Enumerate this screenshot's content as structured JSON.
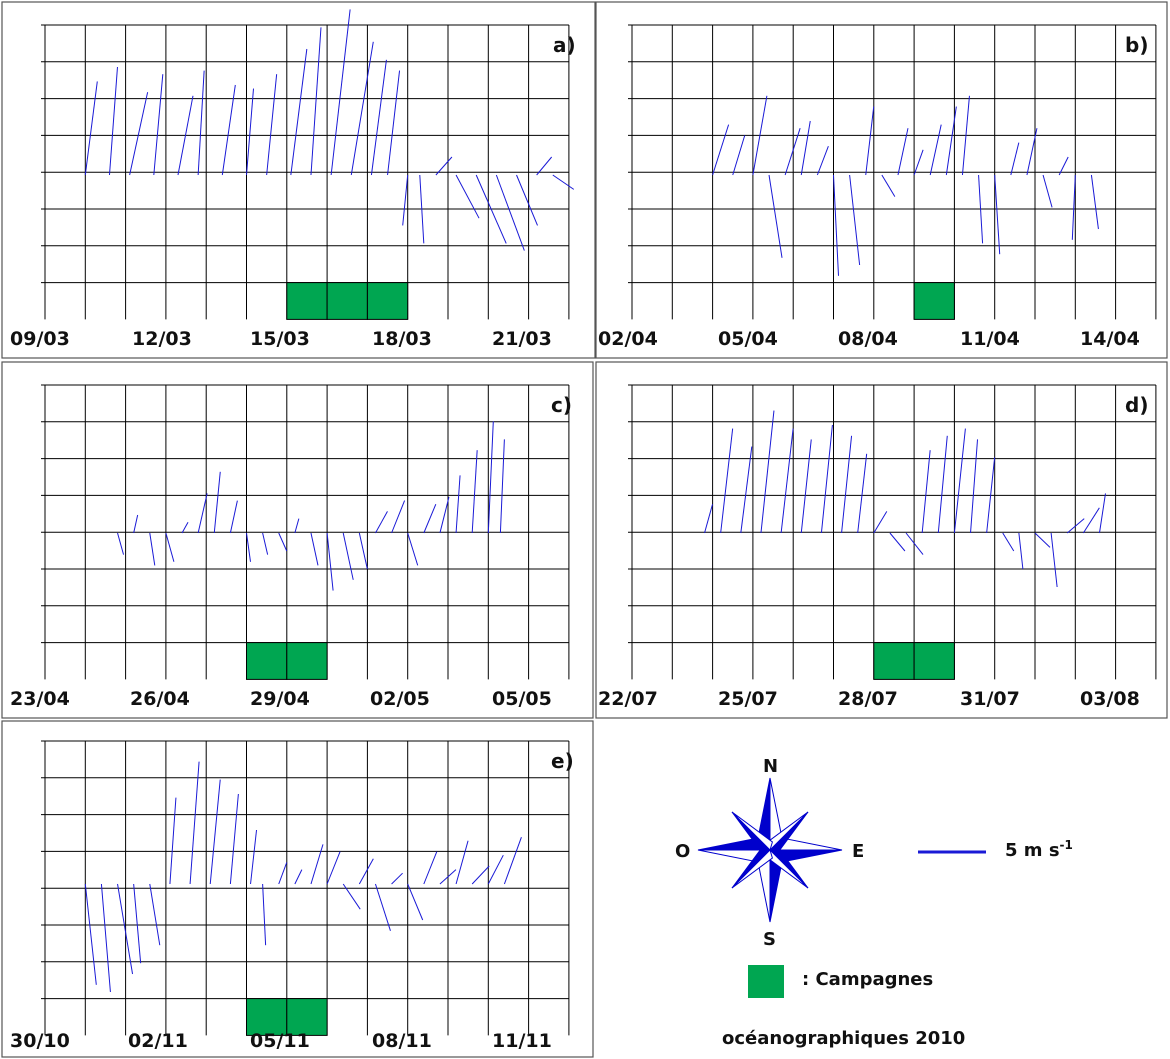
{
  "colors": {
    "wind": "#1a1ad6",
    "campaign": "#00a651",
    "grid": "#000000"
  },
  "chart_data": [
    {
      "type": "wind-stick-plot",
      "panel_label": "a)",
      "x_tick_labels": [
        "09/03",
        "12/03",
        "15/03",
        "18/03",
        "21/03"
      ],
      "campaign_days": [
        "15/03",
        "16/03",
        "17/03"
      ],
      "wind_sticks": [
        {
          "day": 0.0,
          "u": 1.2,
          "v": 2.6
        },
        {
          "day": 0.6,
          "u": 0.8,
          "v": 3.0
        },
        {
          "day": 1.1,
          "u": 1.8,
          "v": 2.3
        },
        {
          "day": 1.7,
          "u": 0.9,
          "v": 2.8
        },
        {
          "day": 2.3,
          "u": 1.5,
          "v": 2.2
        },
        {
          "day": 2.8,
          "u": 0.6,
          "v": 2.9
        },
        {
          "day": 3.4,
          "u": 1.3,
          "v": 2.5
        },
        {
          "day": 4.0,
          "u": 0.7,
          "v": 2.4
        },
        {
          "day": 4.5,
          "u": 1.0,
          "v": 2.8
        },
        {
          "day": 5.1,
          "u": 1.6,
          "v": 3.5
        },
        {
          "day": 5.6,
          "u": 1.0,
          "v": 4.1
        },
        {
          "day": 6.1,
          "u": 1.9,
          "v": 4.6
        },
        {
          "day": 6.6,
          "u": 2.2,
          "v": 3.7
        },
        {
          "day": 7.1,
          "u": 1.5,
          "v": 3.2
        },
        {
          "day": 7.5,
          "u": 1.2,
          "v": 2.9
        },
        {
          "day": 8.0,
          "u": -0.5,
          "v": -1.4
        },
        {
          "day": 8.3,
          "u": 0.4,
          "v": -1.9
        },
        {
          "day": 8.7,
          "u": 1.6,
          "v": 0.5
        },
        {
          "day": 9.2,
          "u": 2.3,
          "v": -1.2
        },
        {
          "day": 9.7,
          "u": 3.0,
          "v": -1.9
        },
        {
          "day": 10.2,
          "u": 2.8,
          "v": -2.1
        },
        {
          "day": 10.7,
          "u": 2.1,
          "v": -1.4
        },
        {
          "day": 11.2,
          "u": 1.5,
          "v": 0.5
        },
        {
          "day": 11.6,
          "u": 2.1,
          "v": -0.4
        }
      ]
    },
    {
      "type": "wind-stick-plot",
      "panel_label": "b)",
      "x_tick_labels": [
        "02/04",
        "05/04",
        "08/04",
        "11/04",
        "14/04"
      ],
      "campaign_days": [
        "09/04"
      ],
      "wind_sticks": [
        {
          "day": 1.0,
          "u": 1.6,
          "v": 1.4
        },
        {
          "day": 1.5,
          "u": 1.2,
          "v": 1.1
        },
        {
          "day": 2.0,
          "u": 1.4,
          "v": 2.2
        },
        {
          "day": 2.4,
          "u": 1.3,
          "v": -2.3
        },
        {
          "day": 2.8,
          "u": 1.5,
          "v": 1.3
        },
        {
          "day": 3.2,
          "u": 0.9,
          "v": 1.5
        },
        {
          "day": 3.6,
          "u": 1.1,
          "v": 0.8
        },
        {
          "day": 4.0,
          "u": 0.5,
          "v": -2.8
        },
        {
          "day": 4.4,
          "u": 1.0,
          "v": -2.5
        },
        {
          "day": 4.8,
          "u": 0.8,
          "v": 1.9
        },
        {
          "day": 5.2,
          "u": 1.3,
          "v": -0.6
        },
        {
          "day": 5.6,
          "u": 1.0,
          "v": 1.3
        },
        {
          "day": 6.0,
          "u": 0.9,
          "v": 0.7
        },
        {
          "day": 6.4,
          "u": 1.1,
          "v": 1.4
        },
        {
          "day": 6.8,
          "u": 1.0,
          "v": 1.9
        },
        {
          "day": 7.2,
          "u": 0.7,
          "v": 2.2
        },
        {
          "day": 7.6,
          "u": 0.4,
          "v": -1.9
        },
        {
          "day": 8.0,
          "u": 0.5,
          "v": -2.2
        },
        {
          "day": 8.4,
          "u": 0.8,
          "v": 0.9
        },
        {
          "day": 8.8,
          "u": 1.0,
          "v": 1.3
        },
        {
          "day": 9.2,
          "u": 0.9,
          "v": -0.9
        },
        {
          "day": 9.6,
          "u": 0.9,
          "v": 0.5
        },
        {
          "day": 10.0,
          "u": -0.3,
          "v": -1.8
        },
        {
          "day": 10.4,
          "u": 0.7,
          "v": -1.5
        }
      ]
    },
    {
      "type": "wind-stick-plot",
      "panel_label": "c)",
      "x_tick_labels": [
        "23/04",
        "26/04",
        "29/04",
        "02/05",
        "05/05"
      ],
      "campaign_days": [
        "28/04",
        "29/04"
      ],
      "wind_sticks": [
        {
          "day": 0.8,
          "u": 0.6,
          "v": -0.6
        },
        {
          "day": 1.2,
          "u": 0.4,
          "v": 0.5
        },
        {
          "day": 1.6,
          "u": 0.5,
          "v": -0.9
        },
        {
          "day": 2.0,
          "u": 0.8,
          "v": -0.8
        },
        {
          "day": 2.4,
          "u": 0.6,
          "v": 0.3
        },
        {
          "day": 2.8,
          "u": 0.9,
          "v": 1.1
        },
        {
          "day": 3.2,
          "u": 0.6,
          "v": 1.7
        },
        {
          "day": 3.6,
          "u": 0.7,
          "v": 0.9
        },
        {
          "day": 4.0,
          "u": 0.4,
          "v": -0.8
        },
        {
          "day": 4.4,
          "u": 0.5,
          "v": -0.6
        },
        {
          "day": 4.8,
          "u": 0.8,
          "v": -0.5
        },
        {
          "day": 5.2,
          "u": 0.4,
          "v": 0.4
        },
        {
          "day": 5.6,
          "u": 0.7,
          "v": -0.9
        },
        {
          "day": 6.0,
          "u": 0.6,
          "v": -1.6
        },
        {
          "day": 6.4,
          "u": 1.0,
          "v": -1.3
        },
        {
          "day": 6.8,
          "u": 0.8,
          "v": -1.0
        },
        {
          "day": 7.2,
          "u": 1.2,
          "v": 0.6
        },
        {
          "day": 7.6,
          "u": 1.3,
          "v": 0.9
        },
        {
          "day": 8.0,
          "u": 1.0,
          "v": -0.9
        },
        {
          "day": 8.4,
          "u": 1.2,
          "v": 0.8
        },
        {
          "day": 8.8,
          "u": 0.9,
          "v": 1.0
        },
        {
          "day": 9.2,
          "u": 0.4,
          "v": 1.6
        },
        {
          "day": 9.6,
          "u": 0.5,
          "v": 2.3
        },
        {
          "day": 10.0,
          "u": 0.5,
          "v": 3.1
        },
        {
          "day": 10.3,
          "u": 0.4,
          "v": 2.6
        }
      ]
    },
    {
      "type": "wind-stick-plot",
      "panel_label": "d)",
      "x_tick_labels": [
        "22/07",
        "25/07",
        "28/07",
        "31/07",
        "03/08"
      ],
      "campaign_days": [
        "28/07",
        "29/07"
      ],
      "wind_sticks": [
        {
          "day": 0.8,
          "u": 0.8,
          "v": 0.8
        },
        {
          "day": 1.2,
          "u": 1.2,
          "v": 2.9
        },
        {
          "day": 1.7,
          "u": 1.1,
          "v": 2.4
        },
        {
          "day": 2.2,
          "u": 1.3,
          "v": 3.4
        },
        {
          "day": 2.7,
          "u": 1.2,
          "v": 2.9
        },
        {
          "day": 3.2,
          "u": 1.0,
          "v": 2.6
        },
        {
          "day": 3.7,
          "u": 1.1,
          "v": 3.0
        },
        {
          "day": 4.2,
          "u": 1.0,
          "v": 2.7
        },
        {
          "day": 4.6,
          "u": 0.9,
          "v": 2.2
        },
        {
          "day": 5.0,
          "u": 1.3,
          "v": 0.6
        },
        {
          "day": 5.4,
          "u": 1.5,
          "v": -0.5
        },
        {
          "day": 5.8,
          "u": 1.7,
          "v": -0.6
        },
        {
          "day": 6.2,
          "u": 0.8,
          "v": 2.3
        },
        {
          "day": 6.6,
          "u": 0.9,
          "v": 2.7
        },
        {
          "day": 7.0,
          "u": 1.1,
          "v": 2.9
        },
        {
          "day": 7.4,
          "u": 0.7,
          "v": 2.6
        },
        {
          "day": 7.8,
          "u": 0.8,
          "v": 2.1
        },
        {
          "day": 8.2,
          "u": 1.1,
          "v": -0.5
        },
        {
          "day": 8.6,
          "u": 0.4,
          "v": -1.0
        },
        {
          "day": 9.0,
          "u": 1.5,
          "v": -0.4
        },
        {
          "day": 9.4,
          "u": 0.6,
          "v": -1.5
        },
        {
          "day": 9.8,
          "u": 1.7,
          "v": 0.4
        },
        {
          "day": 10.2,
          "u": 1.6,
          "v": 0.7
        },
        {
          "day": 10.6,
          "u": 0.6,
          "v": 1.1
        }
      ]
    },
    {
      "type": "wind-stick-plot",
      "panel_label": "e)",
      "x_tick_labels": [
        "30/10",
        "02/11",
        "05/11",
        "08/11",
        "11/11"
      ],
      "campaign_days": [
        "04/11",
        "05/11"
      ],
      "wind_sticks": [
        {
          "day": 0.0,
          "u": 1.1,
          "v": -2.8
        },
        {
          "day": 0.4,
          "u": 0.9,
          "v": -3.0
        },
        {
          "day": 0.8,
          "u": 1.5,
          "v": -2.5
        },
        {
          "day": 1.2,
          "u": 0.7,
          "v": -2.2
        },
        {
          "day": 1.6,
          "u": 1.0,
          "v": -1.7
        },
        {
          "day": 2.1,
          "u": 0.6,
          "v": 2.4
        },
        {
          "day": 2.6,
          "u": 0.9,
          "v": 3.4
        },
        {
          "day": 3.1,
          "u": 1.0,
          "v": 2.9
        },
        {
          "day": 3.6,
          "u": 0.8,
          "v": 2.5
        },
        {
          "day": 4.1,
          "u": 0.6,
          "v": 1.5
        },
        {
          "day": 4.4,
          "u": 0.3,
          "v": -1.7
        },
        {
          "day": 4.8,
          "u": 0.8,
          "v": 0.6
        },
        {
          "day": 5.2,
          "u": 0.7,
          "v": 0.4
        },
        {
          "day": 5.6,
          "u": 1.2,
          "v": 1.1
        },
        {
          "day": 6.0,
          "u": 1.3,
          "v": 0.9
        },
        {
          "day": 6.4,
          "u": 1.7,
          "v": -0.7
        },
        {
          "day": 6.8,
          "u": 1.4,
          "v": 0.7
        },
        {
          "day": 7.2,
          "u": 1.5,
          "v": -1.3
        },
        {
          "day": 7.6,
          "u": 1.1,
          "v": 0.3
        },
        {
          "day": 8.0,
          "u": 1.5,
          "v": -1.0
        },
        {
          "day": 8.4,
          "u": 1.3,
          "v": 0.9
        },
        {
          "day": 8.8,
          "u": 1.6,
          "v": 0.4
        },
        {
          "day": 9.2,
          "u": 1.2,
          "v": 1.2
        },
        {
          "day": 9.6,
          "u": 1.7,
          "v": 0.5
        },
        {
          "day": 10.0,
          "u": 1.5,
          "v": 0.8
        },
        {
          "day": 10.4,
          "u": 1.7,
          "v": 1.3
        }
      ]
    }
  ],
  "legend": {
    "compass": {
      "north": "N",
      "south": "S",
      "east": "E",
      "west": "O"
    },
    "wind_scale": "5 m s",
    "wind_scale_exponent": "-1",
    "campaign_line1": ": Campagnes",
    "campaign_line2": "océanographiques 2010"
  }
}
